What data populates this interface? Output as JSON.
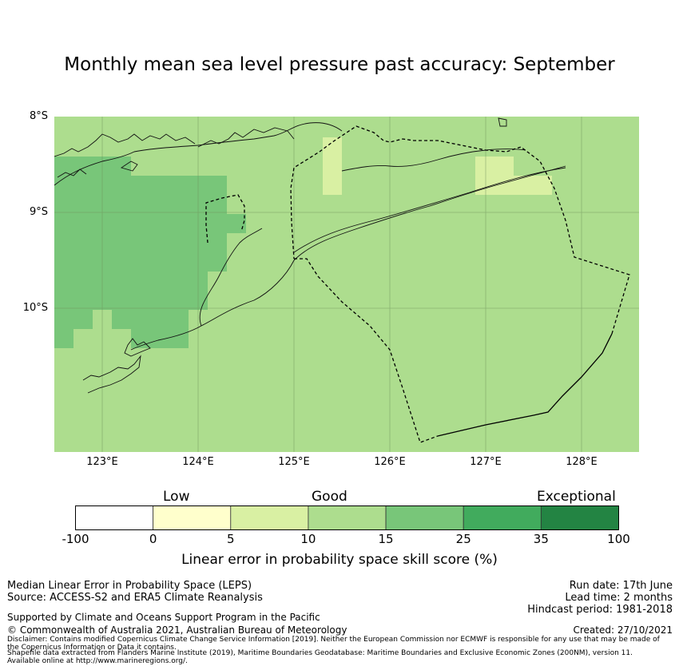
{
  "title": "Monthly mean sea level pressure past accuracy: September",
  "map": {
    "lat_labels": [
      "8°S",
      "9°S",
      "10°S"
    ],
    "lon_labels": [
      "123°E",
      "124°E",
      "125°E",
      "126°E",
      "127°E",
      "128°E"
    ],
    "ocean_color": "#addd8e",
    "category_colors": {
      "10-15": "#addd8e",
      "15-25": "#78c679",
      "5-10": "#d9f0a3"
    }
  },
  "colorbar": {
    "categories": [
      "Low",
      "Good",
      "Exceptional"
    ],
    "ticks": [
      "-100",
      "0",
      "5",
      "10",
      "15",
      "25",
      "35",
      "100"
    ],
    "colors": [
      "#ffffff",
      "#ffffcc",
      "#d9f0a3",
      "#addd8e",
      "#78c679",
      "#41ab5d",
      "#238443"
    ],
    "label": "Linear error in probability space skill score (%)"
  },
  "footer": {
    "left_line1": "Median Linear Error in Probability Space (LEPS)",
    "left_line2": "Source: ACCESS-S2 and ERA5 Climate Reanalysis",
    "supported": "Supported by Climate and Oceans Support Program in the Pacific",
    "copyright": "© Commonwealth of Australia 2021, Australian Bureau of Meteorology",
    "run_date": "Run date: 17th June",
    "lead_time": "Lead time: 2 months",
    "hindcast": "Hindcast period: 1981-2018",
    "created": "Created: 27/10/2021",
    "disclaimer1": "Disclaimer: Contains modified Copernicus Climate Change Service Information [2019]. Neither the European Commission nor ECMWF is responsible for any use that may be made of",
    "disclaimer2": "the Copernicus Information or Data it contains.",
    "shapefile1": "Shapefile data extracted from Flanders Marine Institute (2019), Maritime Boundaries Geodatabase: Maritime Boundaries and Exclusive Economic Zones (200NM), version 11.",
    "shapefile2": "Available online at http://www.marineregions.org/."
  }
}
